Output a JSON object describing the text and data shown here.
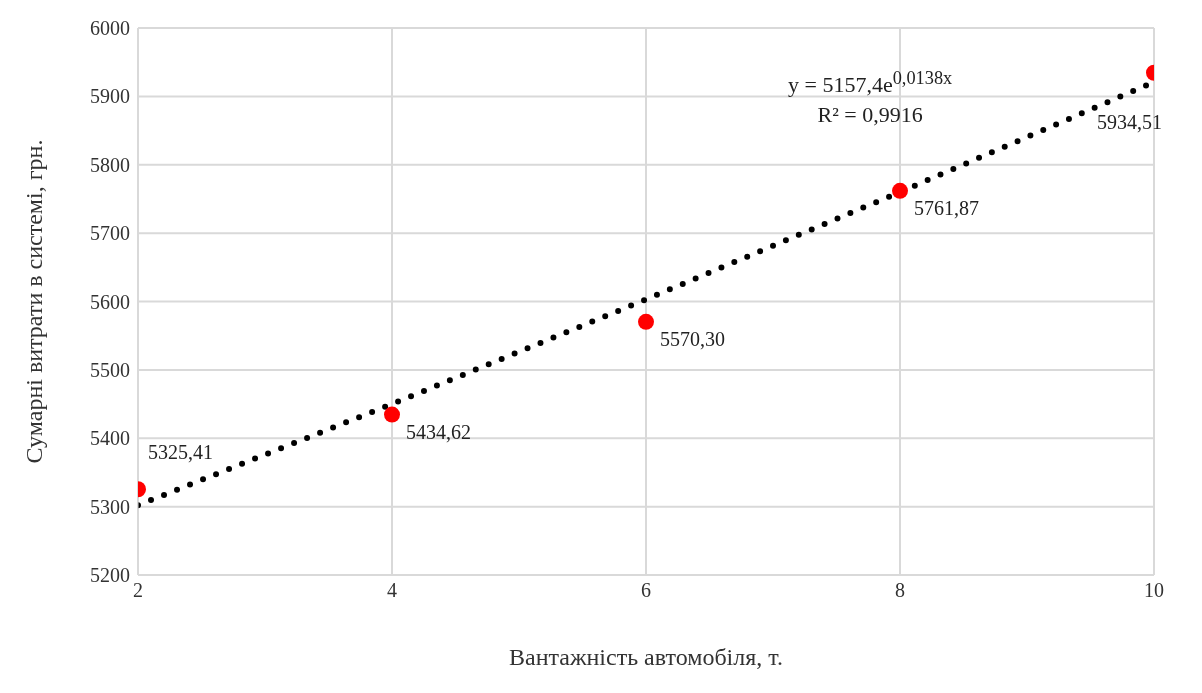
{
  "chart_data": {
    "type": "scatter",
    "xlabel": "Вантажність автомобіля, т.",
    "ylabel": "Сумарні витрати в системі, грн.",
    "x": [
      2,
      4,
      6,
      8,
      10
    ],
    "series": [
      {
        "color": "#ff0000",
        "values": [
          5325.41,
          5434.62,
          5570.3,
          5761.87,
          5934.51
        ],
        "value_labels": [
          "5325,41",
          "5434,62",
          "5570,30",
          "5761,87",
          "5934,51"
        ],
        "marker": "circle"
      },
      {
        "type": "line",
        "color": "#000000",
        "x": [
          2,
          4,
          6,
          8,
          10
        ],
        "values": [
          5302,
          5450,
          5603,
          5760,
          5921
        ],
        "line_style": "dotted",
        "marker": "none"
      }
    ],
    "annotations": [
      "y = 5157,4e$^{0,0138x}$",
      "R² = 0,9916"
    ],
    "xlim": [
      2,
      10
    ],
    "xticks": [
      2,
      4,
      6,
      8,
      10
    ],
    "ylim": [
      5200,
      6000
    ],
    "yticks": [
      5200,
      5300,
      5400,
      5500,
      5600,
      5700,
      5800,
      5900,
      6000
    ],
    "grid": true,
    "legend": false
  }
}
